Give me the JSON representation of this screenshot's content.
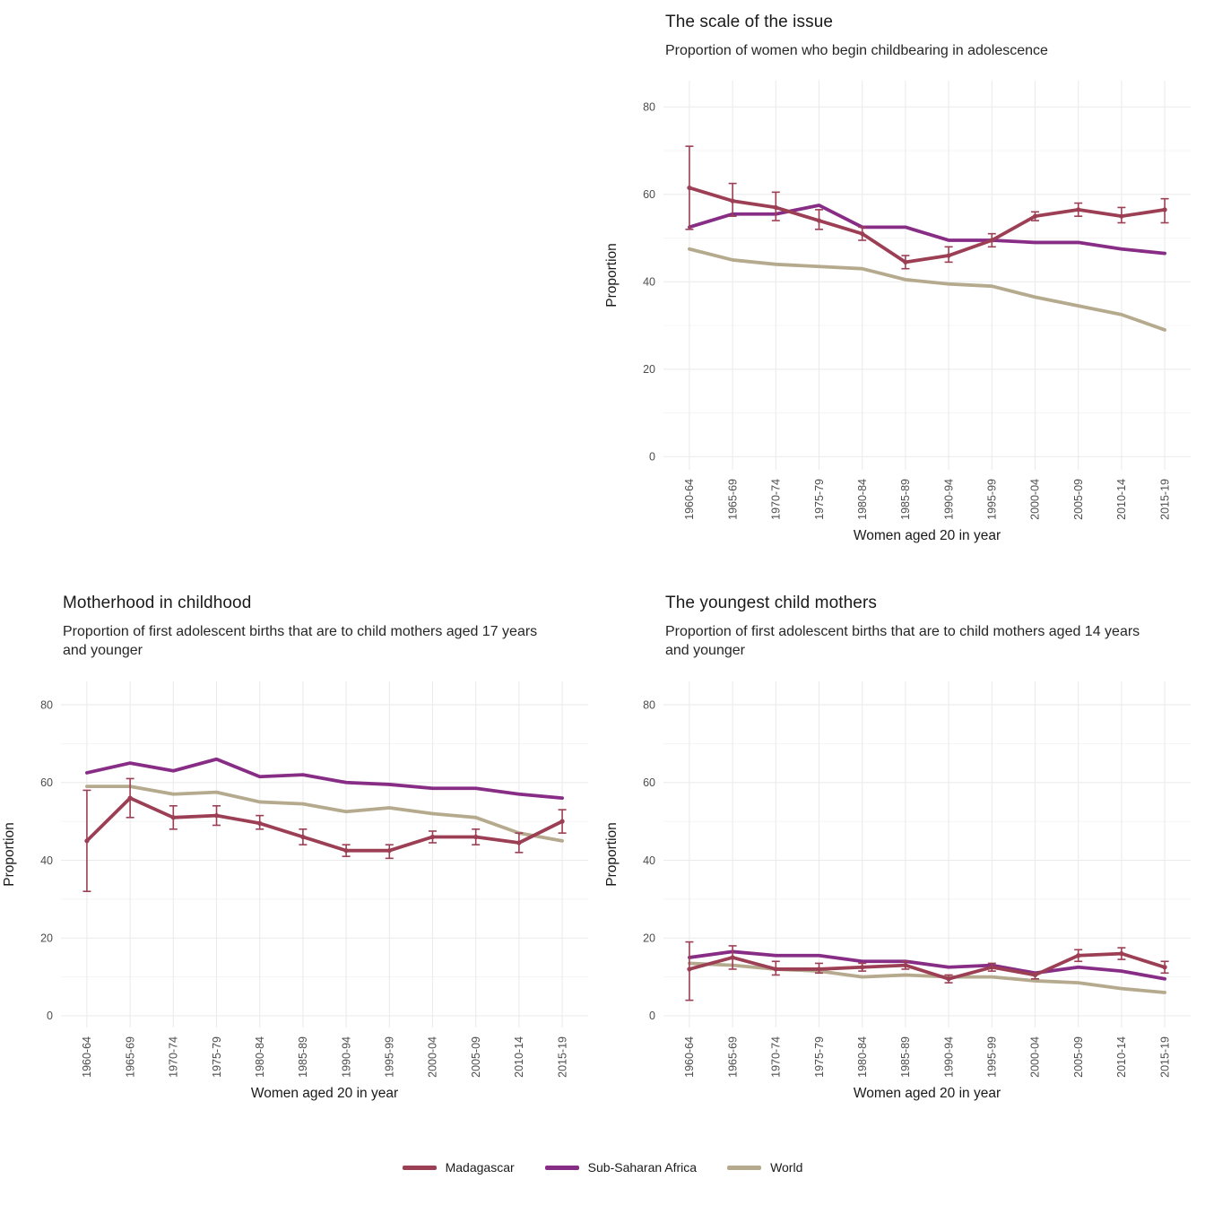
{
  "colors": {
    "madagascar": "#9c3f55",
    "sub_saharan_africa": "#882d86",
    "world": "#b5aa8d",
    "grid": "#ebebeb",
    "grid_minor": "#f2f2f2",
    "axis_text": "#4d4d4d",
    "text": "#1a1a1a",
    "background": "#ffffff"
  },
  "legend": {
    "items": [
      {
        "label": "Madagascar",
        "color": "#9c3f55"
      },
      {
        "label": "Sub-Saharan Africa",
        "color": "#882d86"
      },
      {
        "label": "World",
        "color": "#b5aa8d"
      }
    ]
  },
  "chart_data": [
    {
      "type": "line",
      "title": "The scale of the issue",
      "subtitle": "Proportion of women who begin childbearing in adolescence",
      "xlabel": "Women aged 20 in year",
      "ylabel": "Proportion",
      "ylim": [
        -3,
        86
      ],
      "yticks": [
        0,
        20,
        40,
        60,
        80
      ],
      "yticks_minor": [
        10,
        30,
        50,
        70
      ],
      "grid": true,
      "legend_position": "bottom",
      "categories": [
        "1960-64",
        "1965-69",
        "1970-74",
        "1975-79",
        "1980-84",
        "1985-89",
        "1990-94",
        "1995-99",
        "2000-04",
        "2005-09",
        "2010-14",
        "2015-19"
      ],
      "series": [
        {
          "name": "Madagascar",
          "color": "#9c3f55",
          "points": true,
          "values": [
            61.5,
            58.5,
            57,
            54,
            51,
            44.5,
            46,
            49.5,
            55,
            56.5,
            55,
            56.5
          ],
          "error_low": [
            52,
            55,
            54,
            52,
            49.5,
            43,
            44.5,
            48,
            54,
            55,
            53.5,
            53.5
          ],
          "error_high": [
            71,
            62.5,
            60.5,
            56.5,
            52.5,
            46,
            48,
            51,
            56,
            58,
            57,
            59
          ]
        },
        {
          "name": "Sub-Saharan Africa",
          "color": "#882d86",
          "values": [
            52.5,
            55.5,
            55.5,
            57.5,
            52.5,
            52.5,
            49.5,
            49.5,
            49,
            49,
            47.5,
            46.5
          ]
        },
        {
          "name": "World",
          "color": "#b5aa8d",
          "values": [
            47.5,
            45,
            44,
            43.5,
            43,
            40.5,
            39.5,
            39,
            36.5,
            34.5,
            32.5,
            29
          ]
        }
      ]
    },
    {
      "type": "line",
      "title": "Motherhood in childhood",
      "subtitle": "Proportion of first adolescent births that are to child mothers aged 17 years and younger",
      "xlabel": "Women aged 20 in year",
      "ylabel": "Proportion",
      "ylim": [
        -3,
        86
      ],
      "yticks": [
        0,
        20,
        40,
        60,
        80
      ],
      "yticks_minor": [
        10,
        30,
        50,
        70
      ],
      "grid": true,
      "legend_position": "bottom",
      "categories": [
        "1960-64",
        "1965-69",
        "1970-74",
        "1975-79",
        "1980-84",
        "1985-89",
        "1990-94",
        "1995-99",
        "2000-04",
        "2005-09",
        "2010-14",
        "2015-19"
      ],
      "series": [
        {
          "name": "Madagascar",
          "color": "#9c3f55",
          "points": true,
          "values": [
            45,
            56,
            51,
            51.5,
            49.5,
            46,
            42.5,
            42.5,
            46,
            46,
            44.5,
            50
          ],
          "error_low": [
            32,
            51,
            48,
            49,
            48,
            44,
            41,
            40.5,
            44.5,
            44,
            42,
            47
          ],
          "error_high": [
            58,
            61,
            54,
            54,
            51.5,
            48,
            44,
            44,
            47.5,
            48,
            47,
            53
          ]
        },
        {
          "name": "Sub-Saharan Africa",
          "color": "#882d86",
          "values": [
            62.5,
            65,
            63,
            66,
            61.5,
            62,
            60,
            59.5,
            58.5,
            58.5,
            57,
            56
          ]
        },
        {
          "name": "World",
          "color": "#b5aa8d",
          "values": [
            59,
            59,
            57,
            57.5,
            55,
            54.5,
            52.5,
            53.5,
            52,
            51,
            47,
            45
          ]
        }
      ]
    },
    {
      "type": "line",
      "title": "The youngest child mothers",
      "subtitle": "Proportion of first adolescent births that are to child mothers aged 14 years and younger",
      "xlabel": "Women aged 20 in year",
      "ylabel": "Proportion",
      "ylim": [
        -3,
        86
      ],
      "yticks": [
        0,
        20,
        40,
        60,
        80
      ],
      "yticks_minor": [
        10,
        30,
        50,
        70
      ],
      "grid": true,
      "legend_position": "bottom",
      "categories": [
        "1960-64",
        "1965-69",
        "1970-74",
        "1975-79",
        "1980-84",
        "1985-89",
        "1990-94",
        "1995-99",
        "2000-04",
        "2005-09",
        "2010-14",
        "2015-19"
      ],
      "series": [
        {
          "name": "Madagascar",
          "color": "#9c3f55",
          "points": true,
          "values": [
            12,
            15,
            12,
            12,
            12.5,
            13,
            9.5,
            12.5,
            10.5,
            15.5,
            16,
            12.5
          ],
          "error_low": [
            4,
            12,
            10.5,
            11,
            11.5,
            12,
            8.5,
            11.5,
            9.5,
            14,
            14.5,
            11
          ],
          "error_high": [
            19,
            18,
            14,
            13.5,
            13.5,
            14,
            10.5,
            13.5,
            11,
            17,
            17.5,
            14
          ]
        },
        {
          "name": "Sub-Saharan Africa",
          "color": "#882d86",
          "values": [
            15,
            16.5,
            15.5,
            15.5,
            14,
            14,
            12.5,
            13,
            11,
            12.5,
            11.5,
            9.5
          ]
        },
        {
          "name": "World",
          "color": "#b5aa8d",
          "values": [
            13.5,
            13,
            12,
            11.5,
            10,
            10.5,
            10,
            10,
            9,
            8.5,
            7,
            6
          ]
        }
      ]
    }
  ]
}
